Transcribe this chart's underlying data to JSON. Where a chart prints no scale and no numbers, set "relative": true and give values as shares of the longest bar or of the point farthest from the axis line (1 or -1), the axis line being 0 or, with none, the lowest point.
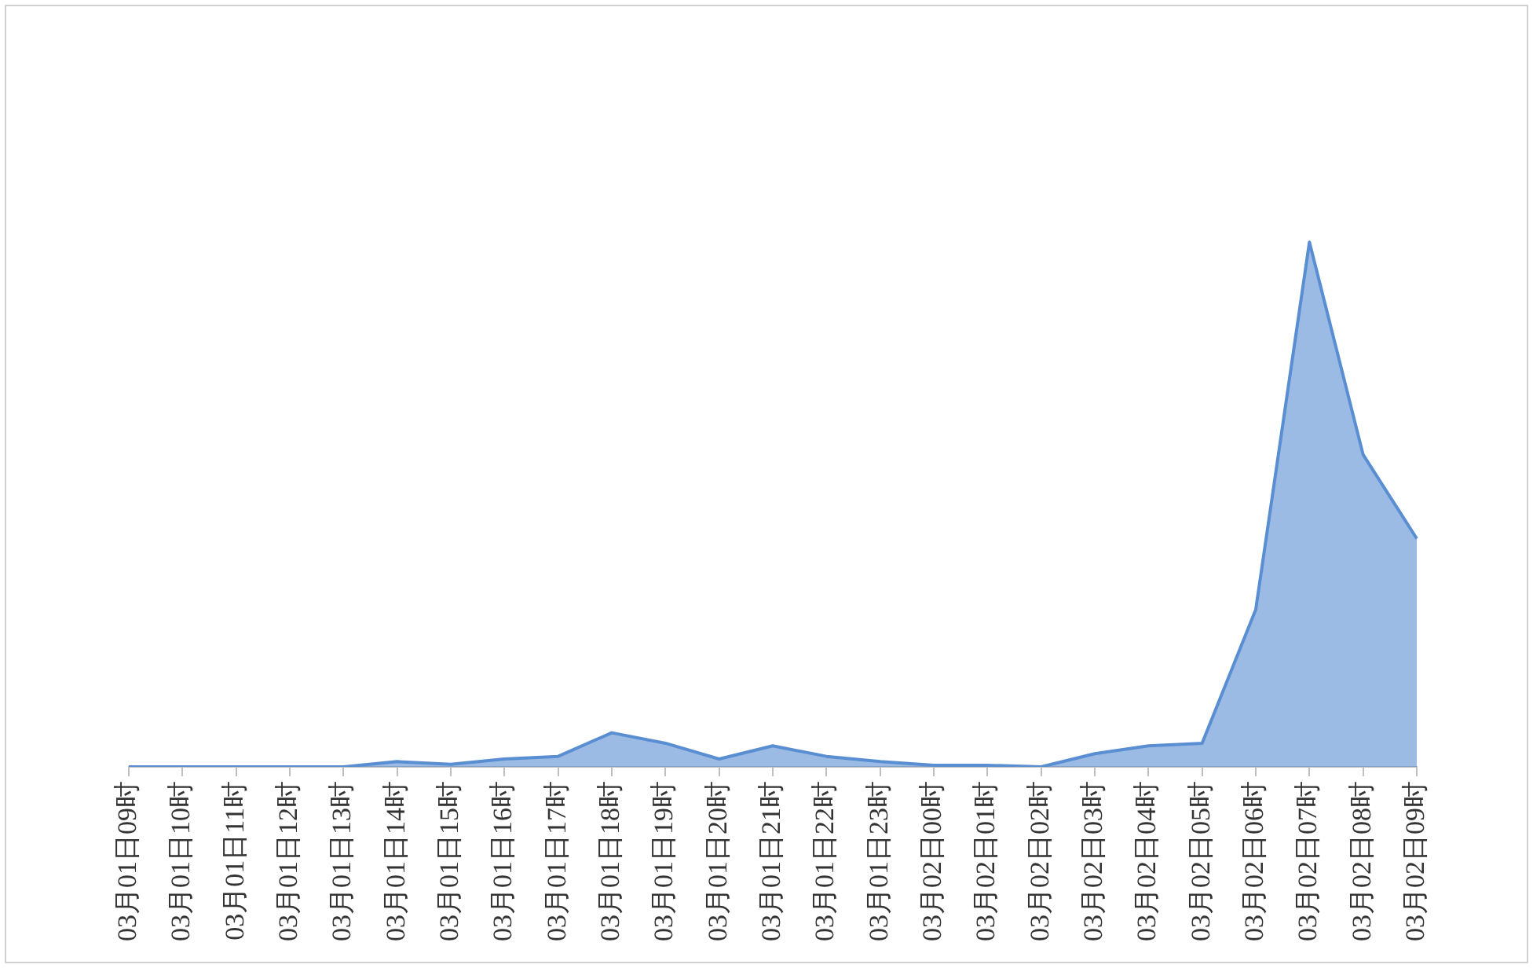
{
  "chart_data": {
    "type": "area",
    "relative": true,
    "legend": false,
    "marker": "none",
    "categories": [
      "03月01日09时",
      "03月01日10时",
      "03月01日11时",
      "03月01日12时",
      "03月01日13时",
      "03月01日14时",
      "03月01日15时",
      "03月01日16时",
      "03月01日17时",
      "03月01日18时",
      "03月01日19时",
      "03月01日20时",
      "03月01日21时",
      "03月01日22时",
      "03月01日23时",
      "03月02日00时",
      "03月02日01时",
      "03月02日02时",
      "03月02日03时",
      "03月02日04时",
      "03月02日05时",
      "03月02日06时",
      "03月02日07时",
      "03月02日08时",
      "03月02日09时"
    ],
    "series": [
      {
        "color": "#5a8ed2",
        "values": [
          0,
          0,
          0,
          0,
          0,
          0.01,
          0.005,
          0.015,
          0.02,
          0.065,
          0.045,
          0.015,
          0.04,
          0.02,
          0.01,
          0.003,
          0.003,
          0,
          0.025,
          0.04,
          0.045,
          0.3,
          1,
          0.595,
          0.435
        ]
      }
    ]
  }
}
